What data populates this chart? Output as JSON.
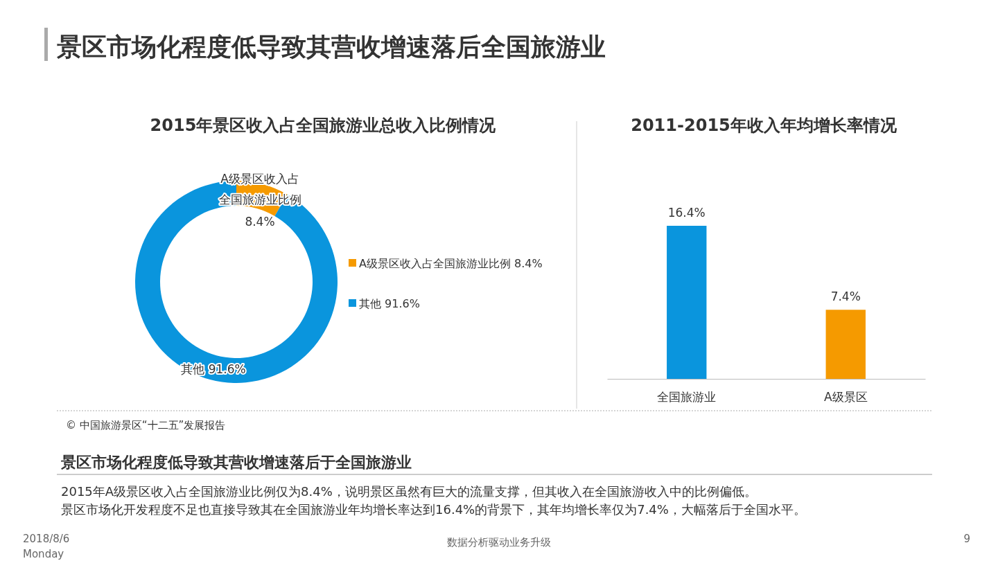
{
  "chart_data": [
    {
      "type": "donut",
      "title": "2015年景区收入占全国旅游业总收入比例情况",
      "categories": [
        "A级景区收入占全国旅游业比例",
        "其他"
      ],
      "values": [
        8.4,
        91.6
      ],
      "colors": [
        "#f59a00",
        "#0a95dd"
      ],
      "value_labels": [
        "8.4%",
        "91.6%"
      ],
      "legend": "right"
    },
    {
      "type": "bar",
      "title": "2011-2015年收入年均增长率情况",
      "categories": [
        "全国旅游业",
        "A级景区"
      ],
      "values": [
        16.4,
        7.4
      ],
      "colors": [
        "#0a95dd",
        "#f59a00"
      ],
      "value_labels": [
        "16.4%",
        "7.4%"
      ],
      "tick_labels": "x"
    },
    {
      "type": "other",
      "title": "景区市场化程度低导致其营收增速落后全国旅游业",
      "annotations": [
        "© 中国旅游景区“十二五”发展报告",
        "景区市场化程度低导致其营收增速落后于全国旅游业",
        "2015年A级景区收入占全国旅游业比例仅为8.4%，说明景区虽然有巨大的流量支撑，但其收入在全国旅游收入中的比例偏低。",
        "景区市场化开发程度不足也直接导致其在全国旅游业年均增长率达到16.4%的背景下，其年均增长率仅为7.4%，大幅落后于全国水平。",
        "2018/8/6",
        "Monday",
        "数据分析驱动业务升级",
        "9"
      ]
    }
  ]
}
